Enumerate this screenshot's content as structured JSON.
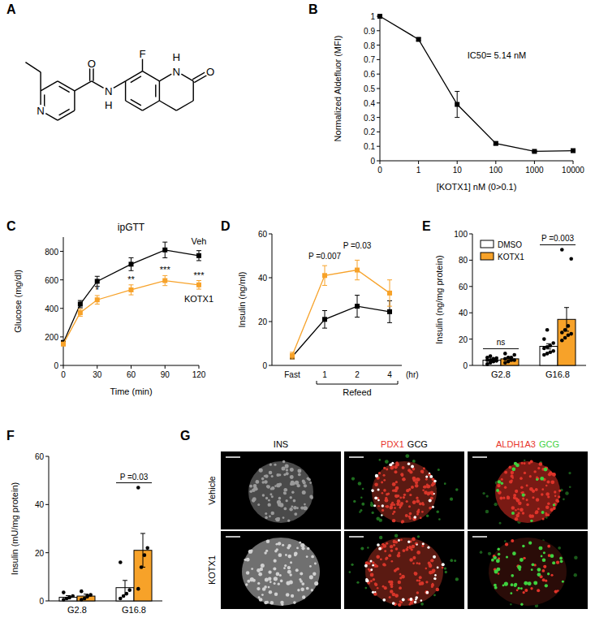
{
  "structure": {
    "panel_label": "A",
    "atoms": [
      "N",
      "O",
      "N",
      "H",
      "F",
      "N",
      "H",
      "O"
    ]
  },
  "chart_data": [
    {
      "panel_label": "B",
      "type": "line",
      "x_label": "[KOTX1] nM (0>0.1)",
      "y_label": "Normalized Aldefluor (MFI)",
      "annotations": [
        "IC50= 5.14 nM"
      ],
      "log": "x",
      "x": [
        0.1,
        1,
        10,
        100,
        1000,
        10000
      ],
      "series": [
        {
          "color": "#000000",
          "marker": "square",
          "values": [
            1,
            0.84,
            0.39,
            0.12,
            0.065,
            0.07
          ],
          "errors": [
            0,
            0.01,
            0.09,
            0.01,
            0.005,
            0.005
          ]
        }
      ],
      "xlim": [
        0.1,
        10000
      ],
      "xticks": [
        {
          "value": 0.1,
          "label": "0"
        },
        1,
        10,
        100,
        1000,
        10000
      ],
      "ylim": [
        0,
        1
      ],
      "yticks": [
        0,
        0.1,
        0.2,
        0.3,
        0.4,
        0.5,
        0.6,
        0.7,
        0.8,
        0.9,
        1
      ]
    },
    {
      "panel_label": "C",
      "type": "line",
      "title": "ipGTT",
      "x_label": "Time (min)",
      "y_label": "Glucose (mg/dl)",
      "x": [
        0,
        15,
        30,
        60,
        90,
        120
      ],
      "series": [
        {
          "name": "Veh",
          "color": "#000000",
          "marker": "square",
          "values": [
            160,
            430,
            590,
            710,
            810,
            770
          ],
          "errors": [
            15,
            25,
            35,
            45,
            55,
            35
          ]
        },
        {
          "name": "KOTX1",
          "color": "#f7a229",
          "marker": "square",
          "values": [
            150,
            370,
            460,
            530,
            595,
            565
          ],
          "errors": [
            12,
            25,
            30,
            35,
            35,
            30
          ]
        }
      ],
      "annotations": [
        {
          "x": 30,
          "label": "*"
        },
        {
          "x": 60,
          "label": "**"
        },
        {
          "x": 90,
          "label": "***"
        },
        {
          "x": 120,
          "label": "***"
        }
      ],
      "xlim": [
        0,
        120
      ],
      "xticks": [
        0,
        30,
        60,
        90,
        120
      ],
      "ylim": [
        0,
        900
      ],
      "yticks": [
        0,
        200,
        400,
        600,
        800
      ]
    },
    {
      "panel_label": "D",
      "type": "line",
      "y_label": "Insulin (ng/ml)",
      "x_label": "Refeed",
      "x_note": "(hr)",
      "categories": [
        "Fast",
        "1",
        "2",
        "4"
      ],
      "series": [
        {
          "color": "#000000",
          "marker": "square",
          "values": [
            4,
            21,
            27,
            24.5
          ],
          "errors": [
            1,
            4,
            5,
            5
          ]
        },
        {
          "color": "#f7a229",
          "marker": "square",
          "values": [
            4.5,
            41,
            43.5,
            33
          ],
          "errors": [
            1.5,
            4.5,
            4.5,
            6
          ]
        }
      ],
      "annotations": [
        {
          "category": "1",
          "label": "P =0.007"
        },
        {
          "category": "2",
          "label": "P =0.03"
        }
      ],
      "ylim": [
        0,
        60
      ],
      "yticks": [
        0,
        20,
        40,
        60
      ]
    },
    {
      "panel_label": "E",
      "type": "bar",
      "y_label": "Insulin (ng/mg protein)",
      "legend": "upper left",
      "categories": [
        "G2.8",
        "G16.8"
      ],
      "series": [
        {
          "name": "DMSO",
          "color": "#ffffff",
          "values": [
            4,
            14.5
          ],
          "errors": [
            1,
            2
          ],
          "points": [
            [
              1,
              2,
              3,
              3.5,
              4,
              4,
              5,
              5.5,
              6,
              7
            ],
            [
              8,
              9,
              10,
              11,
              13,
              14,
              15,
              17,
              20,
              27
            ]
          ]
        },
        {
          "name": "KOTX1",
          "color": "#f7a229",
          "values": [
            5,
            35
          ],
          "errors": [
            1.5,
            9
          ],
          "points": [
            [
              2,
              3,
              4,
              4,
              5,
              6,
              6,
              8,
              9
            ],
            [
              19,
              21,
              23,
              24,
              25,
              27,
              30,
              81,
              88
            ]
          ]
        }
      ],
      "annotations": [
        {
          "category": "G2.8",
          "label": "ns"
        },
        {
          "category": "G16.8",
          "label": "P =0.003"
        }
      ],
      "ylim": [
        0,
        100
      ],
      "yticks": [
        0,
        20,
        40,
        60,
        80,
        100
      ]
    },
    {
      "panel_label": "F",
      "type": "bar",
      "y_label": "Insulin (mU/mg protein)",
      "categories": [
        "G2.8",
        "G16.8"
      ],
      "series": [
        {
          "color": "#ffffff",
          "values": [
            1.5,
            5.5
          ],
          "errors": [
            0.7,
            3
          ],
          "points": [
            [
              0.5,
              1,
              1.5,
              2,
              3.5
            ],
            [
              1,
              2,
              3,
              4.5,
              16
            ]
          ]
        },
        {
          "color": "#f7a229",
          "values": [
            2,
            21
          ],
          "errors": [
            0.8,
            7
          ],
          "points": [
            [
              0.5,
              1,
              2,
              2.5,
              4
            ],
            [
              5,
              14,
              19,
              22,
              47
            ]
          ]
        }
      ],
      "annotations": [
        {
          "category": "G16.8",
          "label": "P =0.03"
        }
      ],
      "ylim": [
        0,
        60
      ],
      "yticks": [
        0,
        20,
        40,
        60
      ]
    }
  ],
  "images": {
    "panel_label": "G",
    "columns": [
      [
        {
          "text": "INS",
          "color": "#ffffff"
        }
      ],
      [
        {
          "text": "PDX1",
          "color": "#e8342a"
        },
        {
          "text": "GCG",
          "color": "#ffffff"
        }
      ],
      [
        {
          "text": "ALDH1A3",
          "color": "#e8342a"
        },
        {
          "text": "GCG",
          "color": "#3fd13f"
        }
      ]
    ],
    "rows": [
      "Vehicle",
      "KOTX1"
    ]
  }
}
